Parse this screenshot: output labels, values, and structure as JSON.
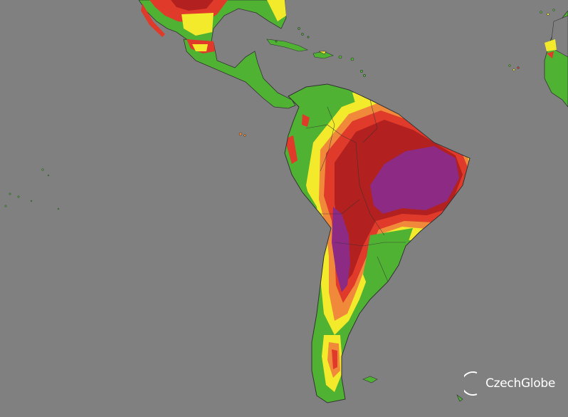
{
  "map": {
    "background_color": "#808080",
    "legend_colors": {
      "low": "#4fb233",
      "moderate": "#f2ea2a",
      "elevated": "#f08a3a",
      "high": "#e03a2a",
      "very_high": "#b2201f",
      "extreme": "#8c2a84"
    }
  },
  "branding": {
    "logo_text": "CzechGlobe",
    "logo_icon": "czechglobe-arc-icon"
  }
}
